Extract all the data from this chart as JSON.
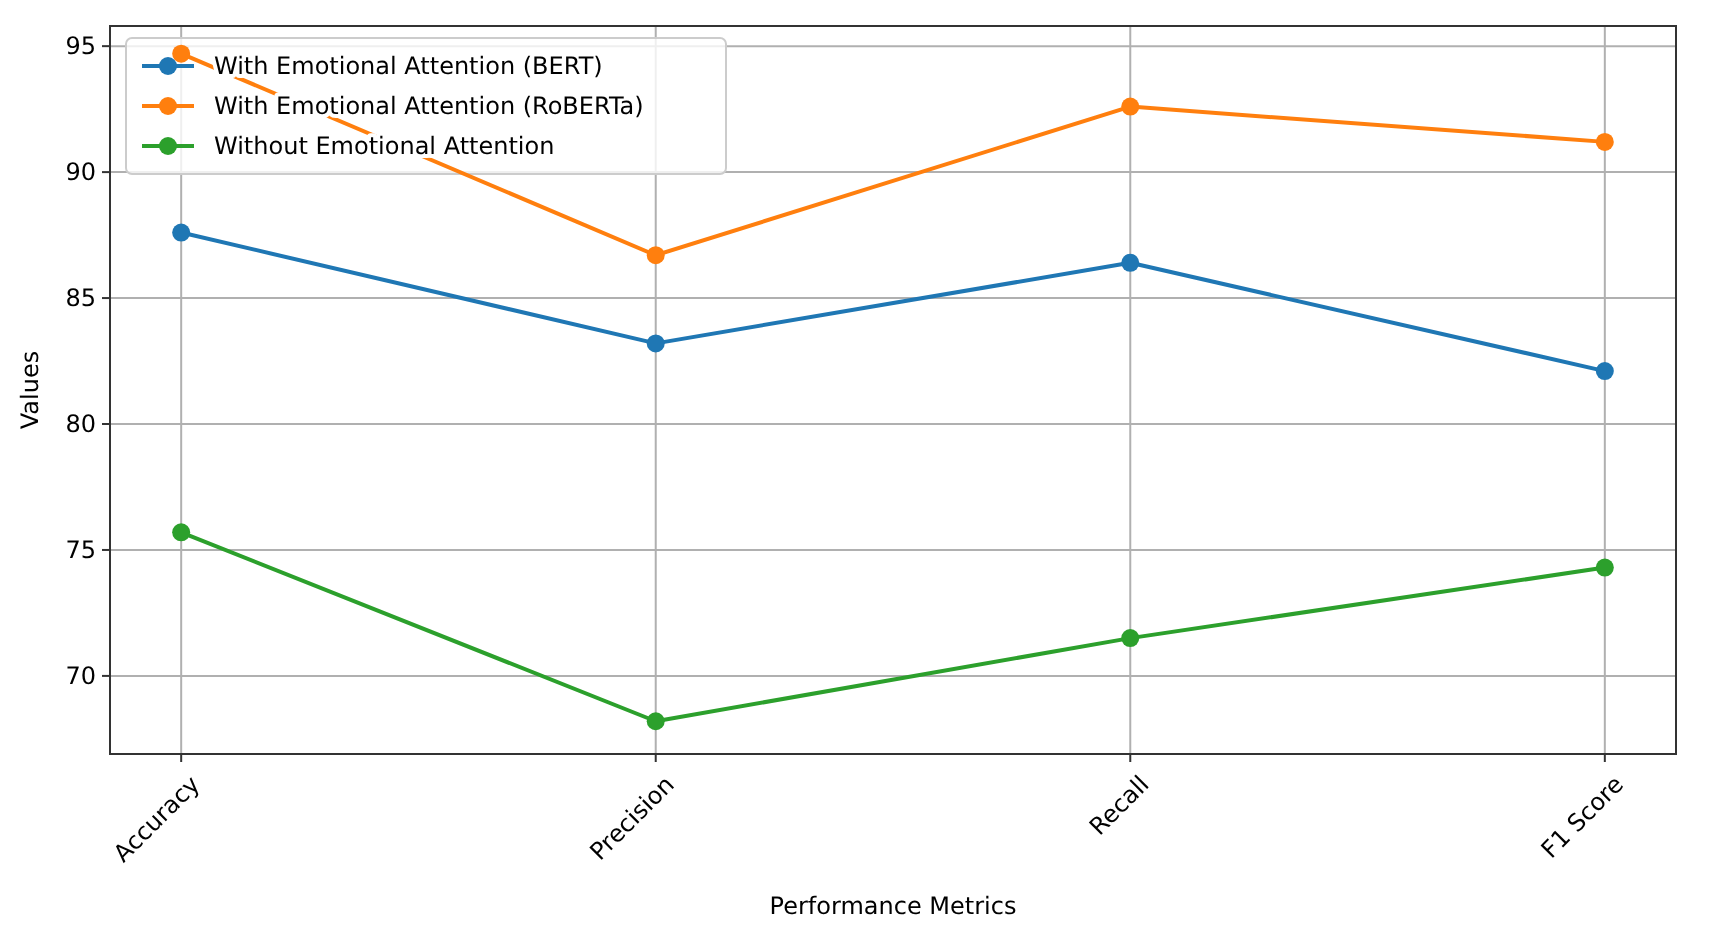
{
  "chart_data": {
    "type": "line",
    "xlabel": "Performance Metrics",
    "ylabel": "Values",
    "categories": [
      "Accuracy",
      "Precision",
      "Recall",
      "F1 Score"
    ],
    "series": [
      {
        "name": "With Emotional Attention (BERT)",
        "color": "#1f77b4",
        "values": [
          87.6,
          83.2,
          86.4,
          82.1
        ]
      },
      {
        "name": "With Emotional Attention (RoBERTa)",
        "color": "#ff7f0e",
        "values": [
          94.7,
          86.7,
          92.6,
          91.2
        ]
      },
      {
        "name": "Without Emotional Attention",
        "color": "#2ca02c",
        "values": [
          75.7,
          68.2,
          71.5,
          74.3
        ]
      }
    ],
    "ylim": [
      66.9,
      95.8
    ],
    "yticks": [
      70,
      75,
      80,
      85,
      90,
      95
    ],
    "grid": true,
    "legend": "top left",
    "marker": "circle",
    "line_style": "solid"
  }
}
